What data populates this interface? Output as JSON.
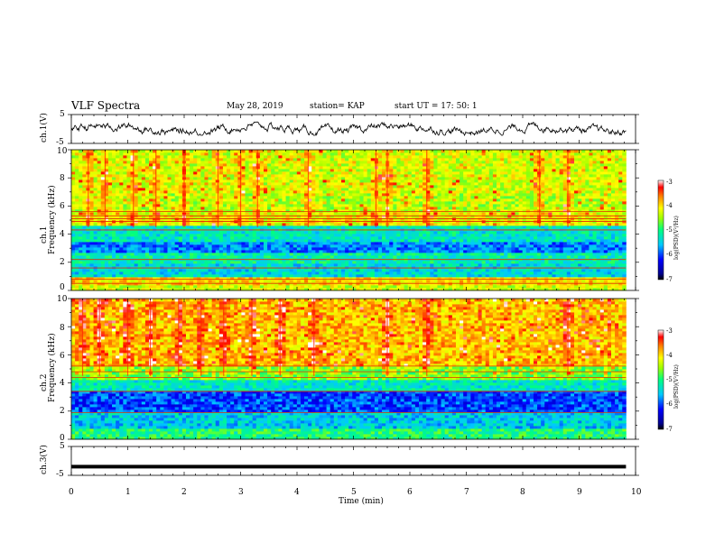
{
  "header": {
    "title": "VLF Spectra",
    "date": "May 28, 2019",
    "station": "station= KAP",
    "start": "start  UT  =   17: 50: 1"
  },
  "labels": {
    "ch1_wave": "ch.1(V)",
    "ch1_spec_a": "ch.1",
    "ch1_spec_b": "Frequency (kHz)",
    "ch2_spec_a": "ch.2",
    "ch2_spec_b": "Frequency (kHz)",
    "ch3_wave": "ch.3(V)",
    "xlabel": "Time  (min)",
    "colorbar_label": "log(PSD)(V²/Hz)"
  },
  "chart_data": [
    {
      "type": "line",
      "panel": "ch.1(V)",
      "ylabel": "ch.1(V)",
      "ylim": [
        -5,
        5
      ],
      "yticks": [
        "5",
        "-5"
      ],
      "x_range": [
        0,
        9.83
      ],
      "note": "noisy waveform oscillating roughly between -1.8 and +2.2 V",
      "color": "#000000"
    },
    {
      "type": "heatmap",
      "panel": "ch.1",
      "ylabel": "Frequency (kHz)",
      "xlim": [
        0,
        10
      ],
      "ylim": [
        0,
        10
      ],
      "yticks": [
        "0",
        "2",
        "4",
        "6",
        "8",
        "10"
      ],
      "x_extent": [
        0,
        9.83
      ],
      "colorbar": {
        "range": [
          -7,
          -3
        ],
        "ticks": [
          "-3",
          "-4",
          "-5",
          "-6",
          "-7"
        ],
        "label": "log(PSD)(V²/Hz)"
      },
      "bands_kHz": [
        {
          "from": 0,
          "to": 0.3,
          "level": -4.3
        },
        {
          "from": 0.3,
          "to": 1.0,
          "level": -4.0
        },
        {
          "from": 1.0,
          "to": 2.0,
          "level": -5.4
        },
        {
          "from": 2.0,
          "to": 2.6,
          "level": -5.2
        },
        {
          "from": 2.6,
          "to": 3.5,
          "level": -5.8
        },
        {
          "from": 3.5,
          "to": 4.7,
          "level": -5.3
        },
        {
          "from": 4.7,
          "to": 5.6,
          "level": -4.2
        },
        {
          "from": 5.6,
          "to": 7.0,
          "level": -4.4
        },
        {
          "from": 7.0,
          "to": 10.0,
          "level": -4.3
        }
      ],
      "lines_kHz": [
        0.5,
        0.8,
        1.6,
        2.2,
        4.3,
        4.9,
        5.1,
        5.3,
        5.6
      ],
      "bursts_min": [
        0.3,
        0.6,
        1.1,
        1.5,
        2.0,
        2.6,
        3.0,
        3.3,
        4.2,
        5.4,
        5.6,
        6.3,
        8.3,
        8.8
      ]
    },
    {
      "type": "heatmap",
      "panel": "ch.2",
      "ylabel": "Frequency (kHz)",
      "xlim": [
        0,
        10
      ],
      "ylim": [
        0,
        10
      ],
      "yticks": [
        "0",
        "2",
        "4",
        "6",
        "8",
        "10"
      ],
      "x_extent": [
        0,
        9.83
      ],
      "colorbar": {
        "range": [
          -7,
          -3
        ],
        "ticks": [
          "-3",
          "-4",
          "-5",
          "-6",
          "-7"
        ],
        "label": "log(PSD)(V²/Hz)"
      },
      "bands_kHz": [
        {
          "from": 0,
          "to": 0.8,
          "level": -5.0
        },
        {
          "from": 0.8,
          "to": 1.9,
          "level": -5.5
        },
        {
          "from": 1.9,
          "to": 3.4,
          "level": -6.0
        },
        {
          "from": 3.4,
          "to": 4.2,
          "level": -5.3
        },
        {
          "from": 4.2,
          "to": 5.2,
          "level": -4.6
        },
        {
          "from": 5.2,
          "to": 10.0,
          "level": -3.9
        }
      ],
      "lines_kHz": [
        1.9,
        3.4,
        4.4,
        4.8,
        5.2
      ],
      "bursts_min": [
        0.2,
        0.5,
        1.0,
        1.4,
        1.9,
        2.3,
        2.7,
        3.2,
        3.7,
        4.3,
        5.6,
        6.3,
        8.8
      ]
    },
    {
      "type": "line",
      "panel": "ch.3(V)",
      "ylabel": "ch.3(V)",
      "ylim": [
        -5,
        5
      ],
      "yticks": [
        "5",
        "-5"
      ],
      "x_range": [
        0,
        9.83
      ],
      "values_const": -2.0,
      "color": "#000000"
    }
  ],
  "xaxis": {
    "min": 0,
    "max": 10,
    "ticks": [
      "0",
      "1",
      "2",
      "3",
      "4",
      "5",
      "6",
      "7",
      "8",
      "9",
      "10"
    ],
    "label": "Time  (min)"
  }
}
